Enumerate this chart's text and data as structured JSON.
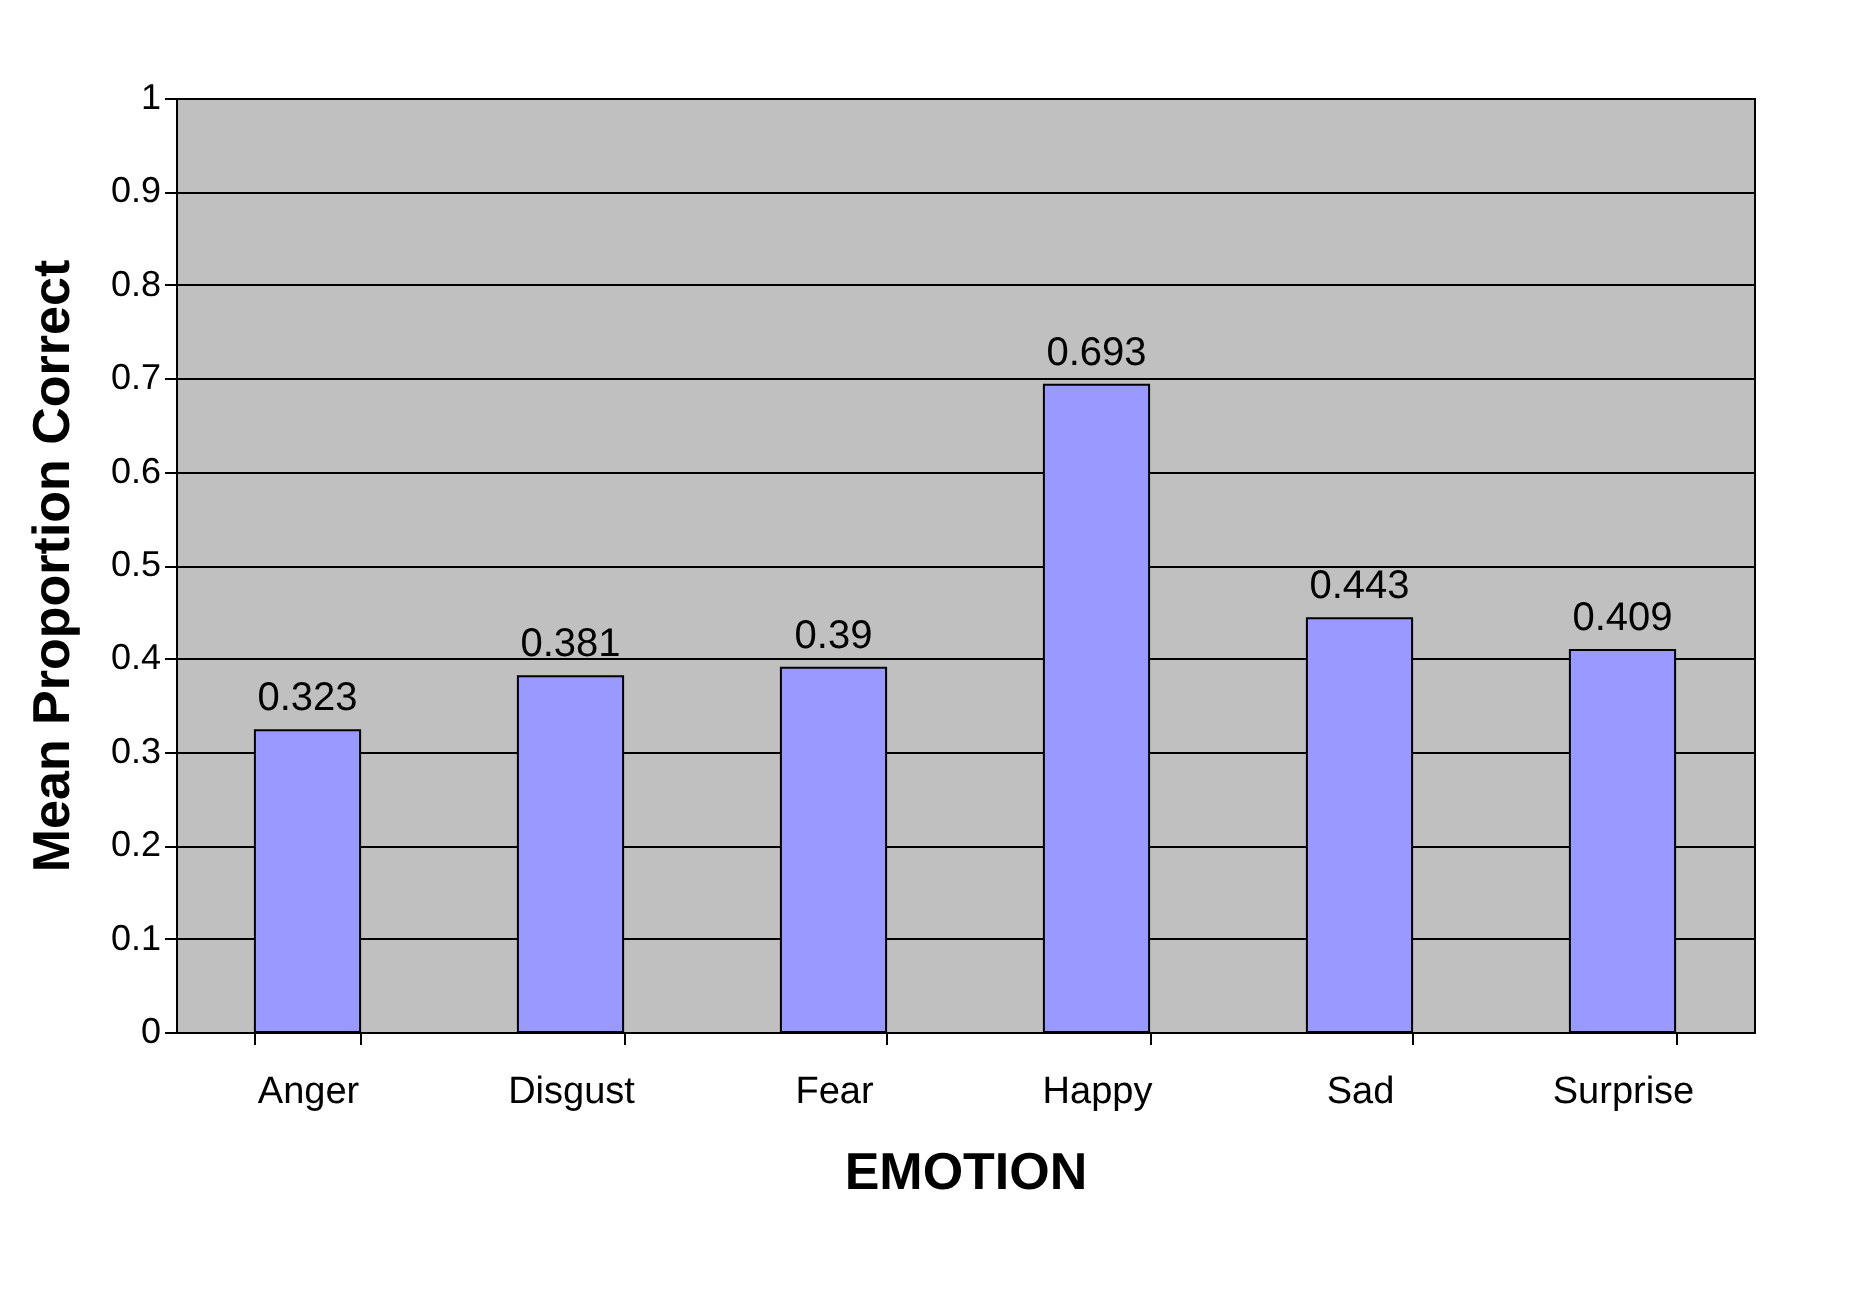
{
  "chart_data": {
    "type": "bar",
    "xlabel": "EMOTION",
    "ylabel": "Mean Proportion Correct",
    "categories": [
      "Anger",
      "Disgust",
      "Fear",
      "Happy",
      "Sad",
      "Surprise"
    ],
    "values": [
      0.323,
      0.381,
      0.39,
      0.693,
      0.443,
      0.409
    ],
    "color": "#9999ff",
    "ylim": [
      0,
      1
    ],
    "yticks": [
      0,
      0.1,
      0.2,
      0.3,
      0.4,
      0.5,
      0.6,
      0.7,
      0.8,
      0.9,
      1
    ],
    "grid": "y",
    "data_labels": true
  }
}
